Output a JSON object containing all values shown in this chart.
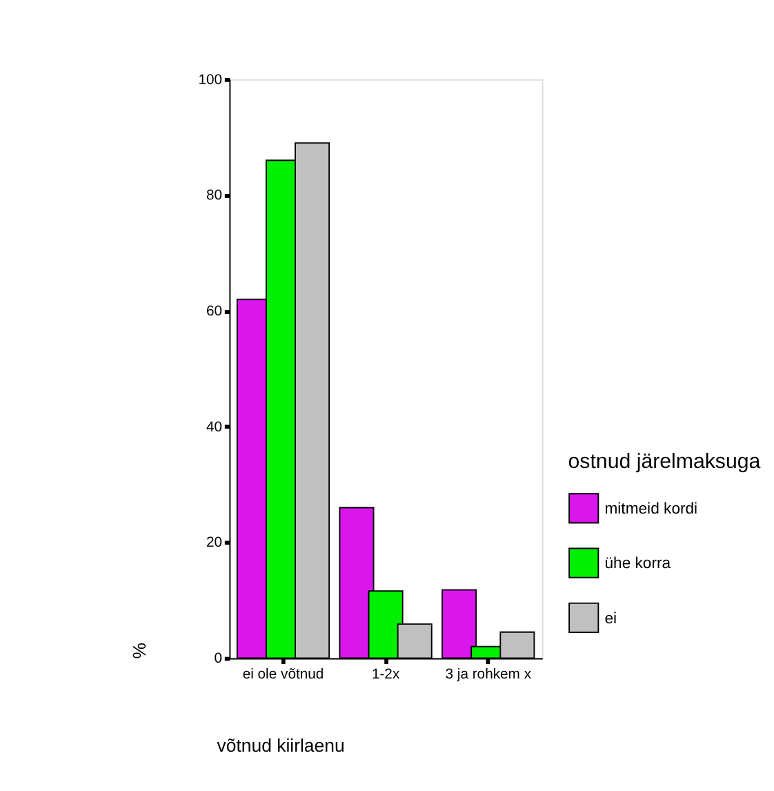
{
  "chart_data": {
    "type": "bar",
    "xlabel": "võtnud kiirlaenu",
    "ylabel": "%",
    "legend_title": "ostnud järelmaksuga",
    "categories": [
      "ei ole võtnud",
      "1-2x",
      "3 ja rohkem x"
    ],
    "series": [
      {
        "name": "mitmeid kordi",
        "color": "#d916ec",
        "values": [
          62,
          26,
          11.8
        ]
      },
      {
        "name": "ühe korra",
        "color": "#00f000",
        "values": [
          86,
          11.6,
          2
        ]
      },
      {
        "name": "ei",
        "color": "#c0c0c0",
        "values": [
          89,
          5.9,
          4.5
        ]
      }
    ],
    "ylim": [
      0,
      100
    ],
    "yticks": [
      0,
      20,
      40,
      60,
      80,
      100
    ],
    "grid": false,
    "legend": "right"
  }
}
